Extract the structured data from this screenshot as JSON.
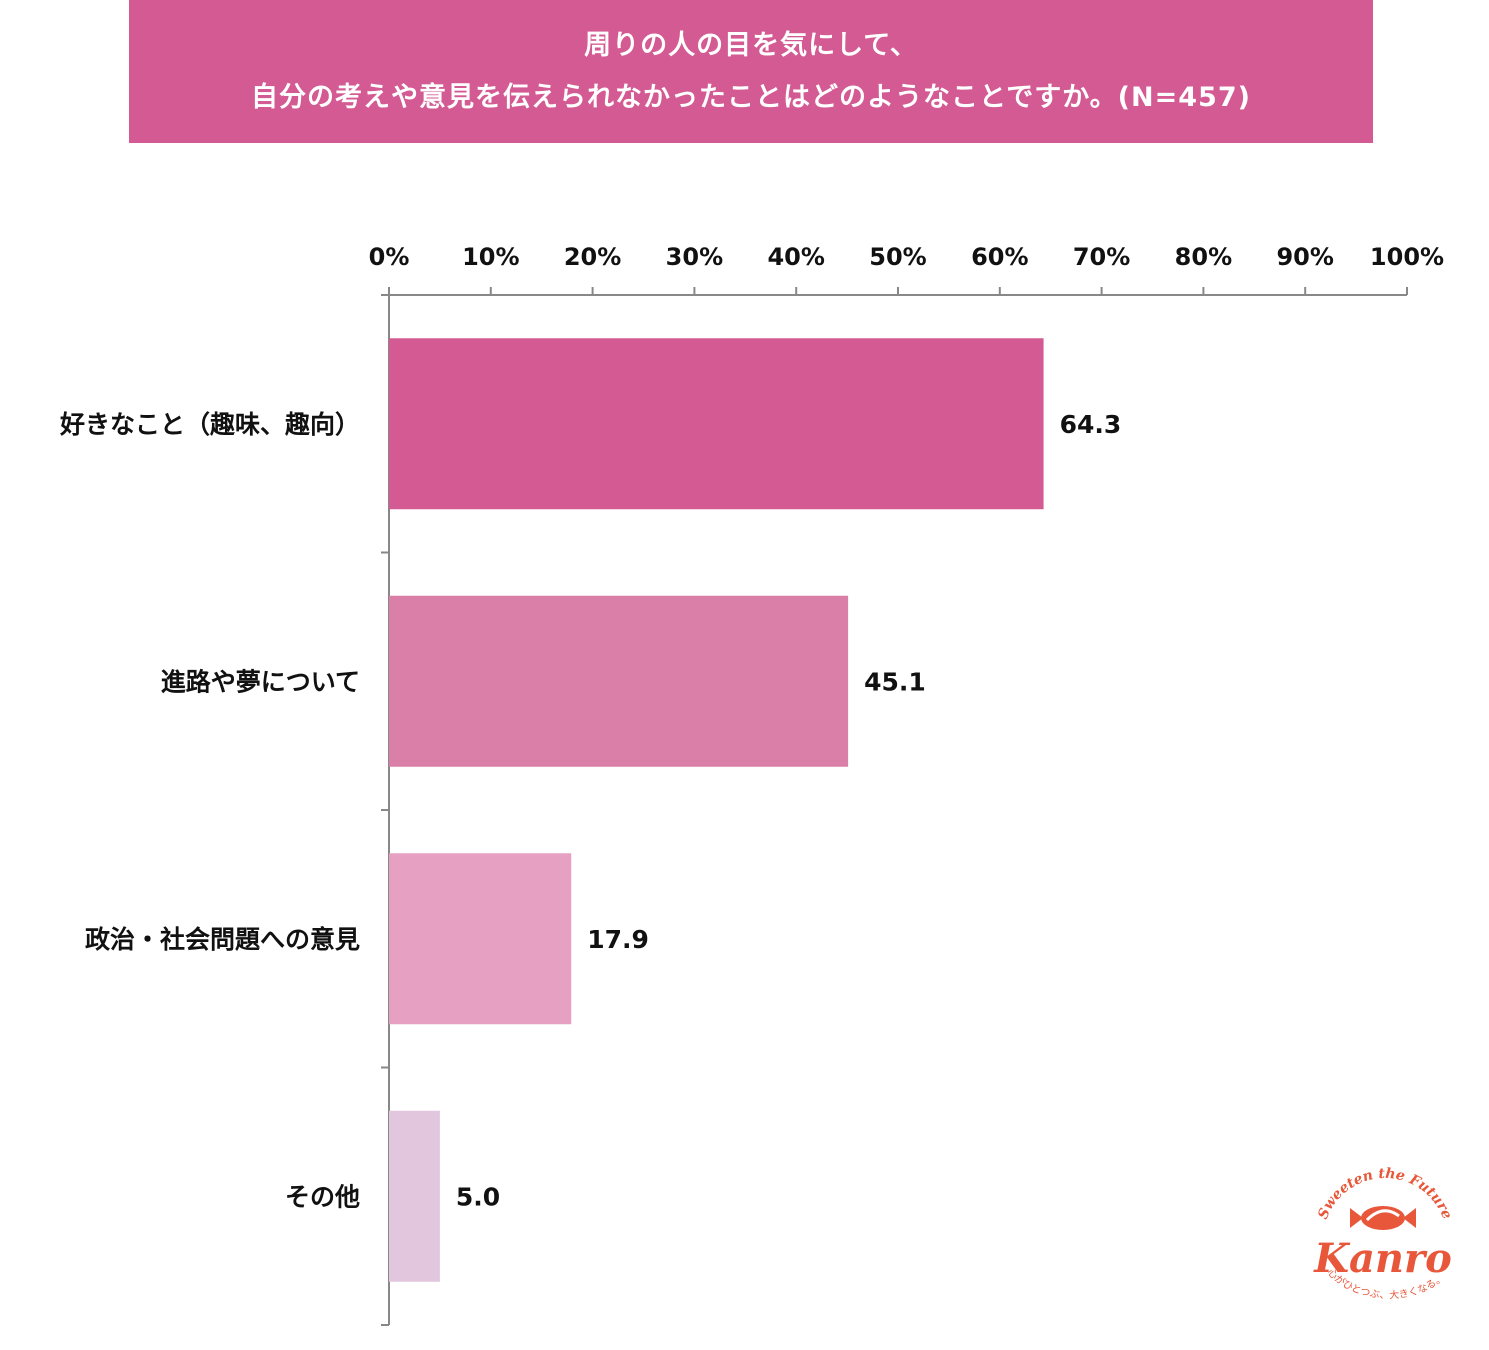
{
  "header": {
    "title_line1": "周りの人の目を気にして、",
    "title_line2": "自分の考えや意見を伝えられなかったことはどのようなことですか。(N=457)"
  },
  "colors": {
    "banner": "#d35a92",
    "axis": "#888888",
    "logo": "#e8573a"
  },
  "chart_data": {
    "type": "bar",
    "orientation": "horizontal",
    "title": "周りの人の目を気にして、自分の考えや意見を伝えられなかったことはどのようなことですか。(N=457)",
    "categories": [
      "好きなこと（趣味、趣向）",
      "進路や夢について",
      "政治・社会問題への意見",
      "その他"
    ],
    "values": [
      64.3,
      45.1,
      17.9,
      5.0
    ],
    "value_labels": [
      "64.3",
      "45.1",
      "17.9",
      "5.0"
    ],
    "bar_colors": [
      "#d35a92",
      "#d97fa8",
      "#e6a1c2",
      "#e2c6de"
    ],
    "x_ticks": [
      "0%",
      "10%",
      "20%",
      "30%",
      "40%",
      "50%",
      "60%",
      "70%",
      "80%",
      "90%",
      "100%"
    ],
    "xlim": [
      0,
      100
    ],
    "xaxis_position": "top",
    "grid": false,
    "legend": "none"
  },
  "logo": {
    "tagline": "Sweeten the Future",
    "brand": "Kanro",
    "slogan": "心がひとつぶ、大きくなる。"
  }
}
